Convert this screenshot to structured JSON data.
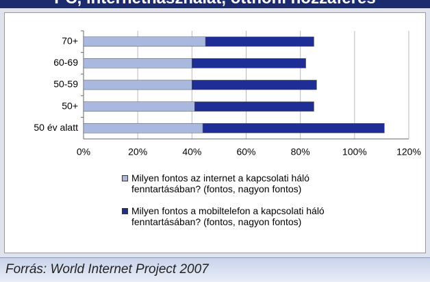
{
  "chart_data": {
    "type": "stacked_barh",
    "title": "PC, internethasználat, otthoni hozzáférés",
    "categories": [
      "70+",
      "60-69",
      "50-59",
      "50+",
      "50 év alatt"
    ],
    "series": [
      {
        "name": "Milyen fontos az internet  a kapcsolati háló fenntartásában? (fontos, nagyon fontos)",
        "color": "#a9b8df",
        "values": [
          45,
          40,
          40,
          41,
          44
        ]
      },
      {
        "name": "Milyen fontos a mobiltelefon a kapcsolati háló fenntartásában? (fontos, nagyon fontos)",
        "color": "#1f2e96",
        "values": [
          40,
          42,
          46,
          44,
          67
        ]
      }
    ],
    "xlim": [
      0,
      120
    ],
    "xticks": [
      {
        "value": 0,
        "label": "0%"
      },
      {
        "value": 20,
        "label": "20%"
      },
      {
        "value": 40,
        "label": "40%"
      },
      {
        "value": 60,
        "label": "60%"
      },
      {
        "value": 80,
        "label": "80%"
      },
      {
        "value": 100,
        "label": "100%"
      },
      {
        "value": 120,
        "label": "120%"
      }
    ],
    "grid": true
  },
  "source": "Forrás: World Internet Project 2007"
}
